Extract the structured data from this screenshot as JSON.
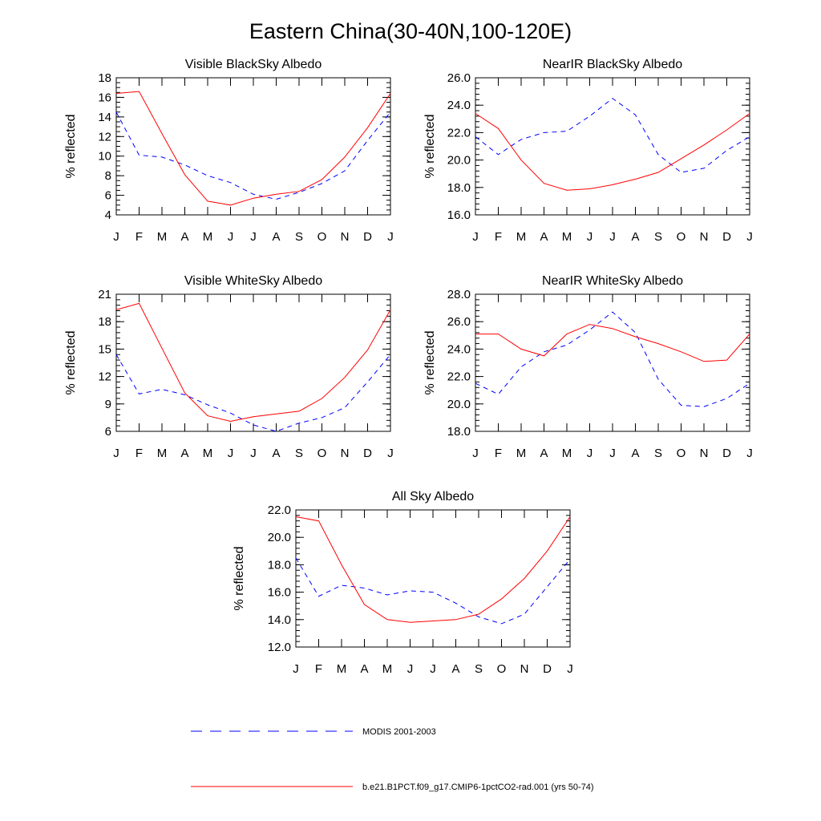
{
  "figure_title": "Eastern China(30-40N,100-120E)",
  "legend": [
    {
      "label": "MODIS 2001-2003",
      "color": "#0000ff",
      "dash": "dashed"
    },
    {
      "label": "b.e21.B1PCT.f09_g17.CMIP6-1pctCO2-rad.001 (yrs 50-74)",
      "color": "#ff0000",
      "dash": "solid"
    }
  ],
  "chart_data": [
    {
      "type": "line",
      "title": "Visible BlackSky Albedo",
      "ylabel": "% reflected",
      "xlabel": "",
      "categories": [
        "J",
        "F",
        "M",
        "A",
        "M",
        "J",
        "J",
        "A",
        "S",
        "O",
        "N",
        "D",
        "J"
      ],
      "ylim": [
        4,
        18
      ],
      "yticks": [
        4,
        6,
        8,
        10,
        12,
        14,
        16,
        18
      ],
      "ytick_labels": [
        "4",
        "6",
        "8",
        "10",
        "12",
        "14",
        "16",
        "18"
      ],
      "yminor_step": 0.5,
      "series": [
        {
          "name": "MODIS 2001-2003",
          "color": "#0000ff",
          "dash": "dashed",
          "values": [
            14.5,
            10.1,
            9.9,
            9.1,
            8.0,
            7.3,
            6.1,
            5.6,
            6.3,
            7.2,
            8.5,
            11.6,
            14.5
          ]
        },
        {
          "name": "b.e21.B1PCT.f09_g17.CMIP6-1pctCO2-rad.001 (yrs 50-74)",
          "color": "#ff0000",
          "dash": "solid",
          "values": [
            16.4,
            16.6,
            12.3,
            8.1,
            5.4,
            5.0,
            5.7,
            6.1,
            6.4,
            7.6,
            9.9,
            12.9,
            16.4
          ]
        }
      ]
    },
    {
      "type": "line",
      "title": "NearIR BlackSky Albedo",
      "ylabel": "% reflected",
      "xlabel": "",
      "categories": [
        "J",
        "F",
        "M",
        "A",
        "M",
        "J",
        "J",
        "A",
        "S",
        "O",
        "N",
        "D",
        "J"
      ],
      "ylim": [
        16,
        26
      ],
      "yticks": [
        16,
        18,
        20,
        22,
        24,
        26
      ],
      "ytick_labels": [
        "16.0",
        "18.0",
        "20.0",
        "22.0",
        "24.0",
        "26.0"
      ],
      "yminor_step": 0.4,
      "series": [
        {
          "name": "MODIS 2001-2003",
          "color": "#0000ff",
          "dash": "dashed",
          "values": [
            21.7,
            20.4,
            21.5,
            22.0,
            22.1,
            23.2,
            24.5,
            23.3,
            20.4,
            19.1,
            19.4,
            20.7,
            21.7
          ]
        },
        {
          "name": "b.e21.B1PCT.f09_g17.CMIP6-1pctCO2-rad.001 (yrs 50-74)",
          "color": "#ff0000",
          "dash": "solid",
          "values": [
            23.4,
            22.3,
            20.0,
            18.3,
            17.8,
            17.9,
            18.2,
            18.6,
            19.1,
            20.1,
            21.1,
            22.2,
            23.4
          ]
        }
      ]
    },
    {
      "type": "line",
      "title": "Visible WhiteSky Albedo",
      "ylabel": "% reflected",
      "xlabel": "",
      "categories": [
        "J",
        "F",
        "M",
        "A",
        "M",
        "J",
        "J",
        "A",
        "S",
        "O",
        "N",
        "D",
        "J"
      ],
      "ylim": [
        6,
        21
      ],
      "yticks": [
        6,
        9,
        12,
        15,
        18,
        21
      ],
      "ytick_labels": [
        "6",
        "9",
        "12",
        "15",
        "18",
        "21"
      ],
      "yminor_step": 0.6,
      "series": [
        {
          "name": "MODIS 2001-2003",
          "color": "#0000ff",
          "dash": "dashed",
          "values": [
            14.4,
            10.1,
            10.6,
            10.0,
            8.9,
            8.0,
            6.7,
            6.0,
            6.9,
            7.5,
            8.6,
            11.4,
            14.4
          ]
        },
        {
          "name": "b.e21.B1PCT.f09_g17.CMIP6-1pctCO2-rad.001 (yrs 50-74)",
          "color": "#ff0000",
          "dash": "solid",
          "values": [
            19.3,
            20.0,
            15.1,
            10.2,
            7.7,
            7.1,
            7.6,
            7.9,
            8.2,
            9.6,
            11.9,
            14.9,
            19.3
          ]
        }
      ]
    },
    {
      "type": "line",
      "title": "NearIR WhiteSky Albedo",
      "ylabel": "% reflected",
      "xlabel": "",
      "categories": [
        "J",
        "F",
        "M",
        "A",
        "M",
        "J",
        "J",
        "A",
        "S",
        "O",
        "N",
        "D",
        "J"
      ],
      "ylim": [
        18,
        28
      ],
      "yticks": [
        18,
        20,
        22,
        24,
        26,
        28
      ],
      "ytick_labels": [
        "18.0",
        "20.0",
        "22.0",
        "24.0",
        "26.0",
        "28.0"
      ],
      "yminor_step": 0.4,
      "series": [
        {
          "name": "MODIS 2001-2003",
          "color": "#0000ff",
          "dash": "dashed",
          "values": [
            21.5,
            20.7,
            22.7,
            23.8,
            24.3,
            25.4,
            26.7,
            25.2,
            21.8,
            19.9,
            19.8,
            20.4,
            21.5
          ]
        },
        {
          "name": "b.e21.B1PCT.f09_g17.CMIP6-1pctCO2-rad.001 (yrs 50-74)",
          "color": "#ff0000",
          "dash": "solid",
          "values": [
            25.1,
            25.1,
            24.0,
            23.5,
            25.1,
            25.8,
            25.5,
            24.9,
            24.4,
            23.8,
            23.1,
            23.2,
            25.1
          ]
        }
      ]
    },
    {
      "type": "line",
      "title": "All Sky Albedo",
      "ylabel": "% reflected",
      "xlabel": "",
      "categories": [
        "J",
        "F",
        "M",
        "A",
        "M",
        "J",
        "J",
        "A",
        "S",
        "O",
        "N",
        "D",
        "J"
      ],
      "ylim": [
        12,
        22
      ],
      "yticks": [
        12,
        14,
        16,
        18,
        20,
        22
      ],
      "ytick_labels": [
        "12.0",
        "14.0",
        "16.0",
        "18.0",
        "20.0",
        "22.0"
      ],
      "yminor_step": 0.4,
      "series": [
        {
          "name": "MODIS 2001-2003",
          "color": "#0000ff",
          "dash": "dashed",
          "values": [
            18.5,
            15.7,
            16.5,
            16.3,
            15.8,
            16.1,
            16.0,
            15.2,
            14.2,
            13.7,
            14.4,
            16.4,
            18.4
          ]
        },
        {
          "name": "b.e21.B1PCT.f09_g17.CMIP6-1pctCO2-rad.001 (yrs 50-74)",
          "color": "#ff0000",
          "dash": "solid",
          "values": [
            21.5,
            21.2,
            18.0,
            15.1,
            14.0,
            13.8,
            13.9,
            14.0,
            14.4,
            15.5,
            17.0,
            19.0,
            21.5
          ]
        }
      ]
    }
  ]
}
